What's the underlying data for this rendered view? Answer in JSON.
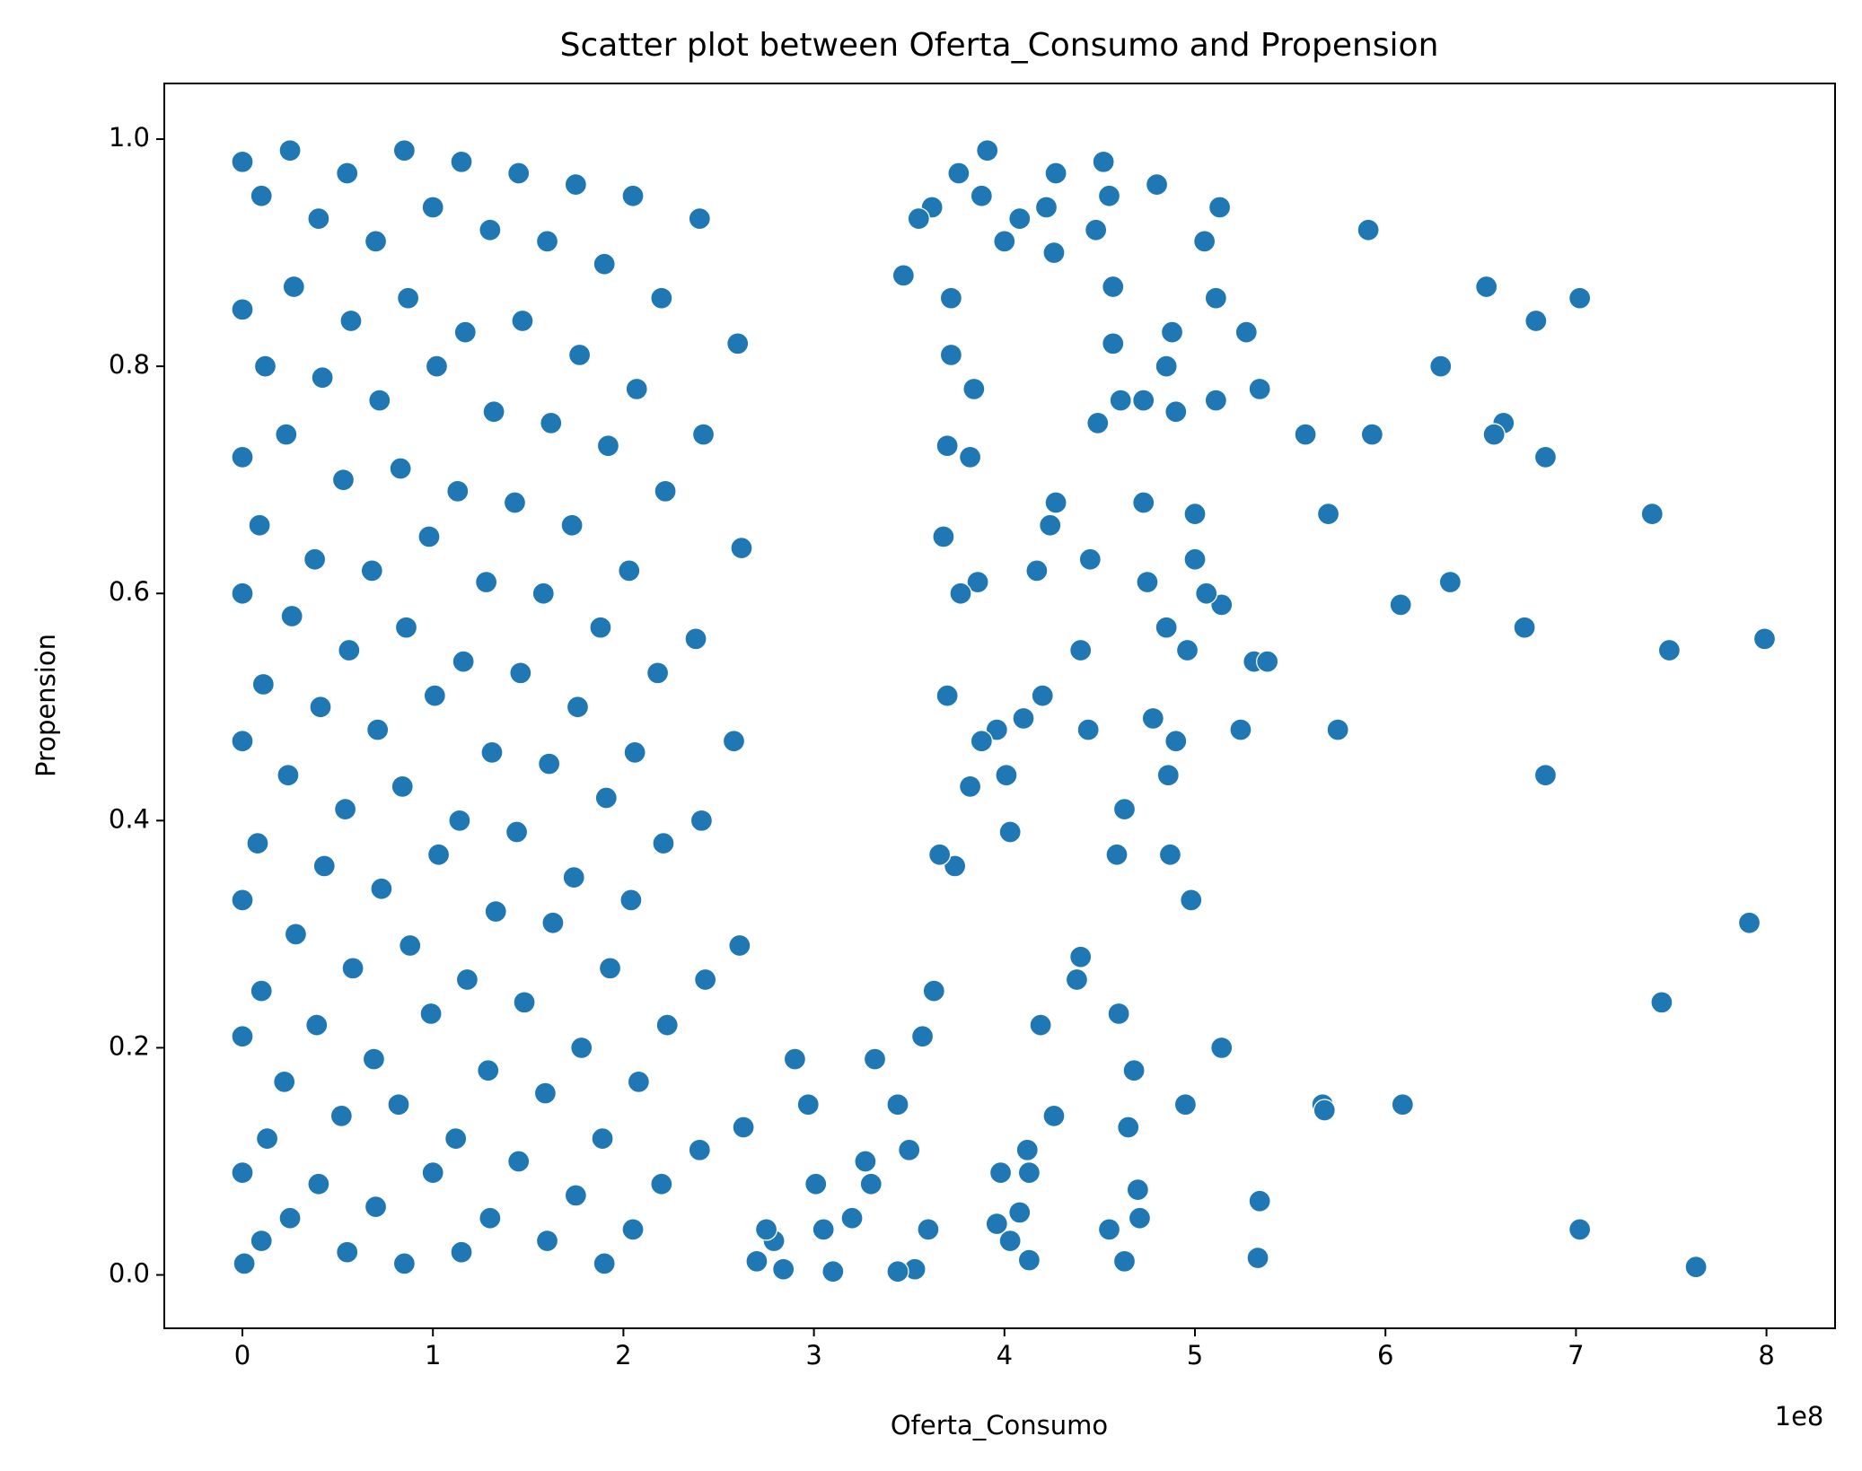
{
  "chart_data": {
    "type": "scatter",
    "title": "Scatter plot between Oferta_Consumo and Propension",
    "x_label": "Oferta_Consumo",
    "y_label": "Propension",
    "x_offset_label": "1e8",
    "color": "#1f77b4",
    "xlim": [
      -0.41,
      8.36
    ],
    "ylim": [
      -0.047,
      1.049
    ],
    "xticks": [
      0,
      1,
      2,
      3,
      4,
      5,
      6,
      7,
      8
    ],
    "yticks": [
      {
        "value": 0,
        "label": "0.0"
      },
      0.2,
      0.4,
      0.6,
      0.8,
      {
        "value": 1,
        "label": "1.0"
      }
    ],
    "x": [
      0,
      0,
      0,
      0,
      0,
      0,
      0,
      0,
      0.01,
      0.1,
      0.12,
      0.09,
      0.11,
      0.08,
      0.1,
      0.13,
      0.1,
      0.25,
      0.27,
      0.23,
      0.26,
      0.24,
      0.28,
      0.22,
      0.25,
      0.4,
      0.42,
      0.38,
      0.41,
      0.43,
      0.39,
      0.4,
      0.55,
      0.57,
      0.53,
      0.56,
      0.54,
      0.58,
      0.52,
      0.55,
      0.7,
      0.72,
      0.68,
      0.71,
      0.73,
      0.69,
      0.7,
      0.85,
      0.87,
      0.83,
      0.86,
      0.84,
      0.88,
      0.82,
      0.85,
      1.0,
      1.02,
      0.98,
      1.01,
      1.03,
      0.99,
      1.0,
      1.15,
      1.17,
      1.13,
      1.16,
      1.14,
      1.18,
      1.12,
      1.15,
      1.3,
      1.32,
      1.28,
      1.31,
      1.33,
      1.29,
      1.3,
      1.45,
      1.47,
      1.43,
      1.46,
      1.44,
      1.48,
      1.45,
      1.6,
      1.62,
      1.58,
      1.61,
      1.63,
      1.59,
      1.6,
      1.75,
      1.77,
      1.73,
      1.76,
      1.74,
      1.78,
      1.75,
      1.9,
      1.92,
      1.88,
      1.91,
      1.93,
      1.89,
      1.9,
      2.05,
      2.07,
      2.03,
      2.06,
      2.04,
      2.08,
      2.05,
      2.2,
      2.22,
      2.18,
      2.21,
      2.23,
      2.2,
      2.4,
      2.42,
      2.38,
      2.41,
      2.43,
      2.4,
      2.6,
      2.62,
      2.58,
      2.61,
      2.63,
      5.91,
      6.53,
      7.02,
      6.79,
      6.29,
      5.58,
      5.93,
      6.62,
      6.57,
      6.84,
      7.4,
      5.7,
      6.34,
      6.08,
      6.73,
      7.49,
      7.99,
      5.75,
      6.84,
      7.91,
      7.45,
      6.09,
      5.67,
      5.68,
      7.02,
      7.63,
      5.34,
      5.33,
      5.14,
      4.95,
      5.13,
      5.05,
      5.11,
      5.27,
      5.34,
      5.11,
      4.8,
      5.0,
      5.0,
      5.14,
      5.06,
      4.85,
      4.96,
      5.24,
      5.31,
      5.38,
      4.98,
      4.63,
      4.59,
      4.68,
      4.6,
      4.55,
      4.63,
      4.71,
      4.7,
      4.65,
      4.87,
      4.86,
      4.78,
      4.9,
      4.88,
      4.85,
      4.9,
      4.73,
      4.73,
      4.75,
      4.52,
      4.55,
      4.48,
      4.57,
      4.57,
      4.61,
      4.49,
      4.45,
      4.4,
      4.44,
      4.4,
      4.38,
      4.26,
      4.19,
      4.13,
      4.12,
      4.13,
      4.08,
      3.98,
      4.03,
      3.96,
      4.01,
      4.03,
      3.96,
      4.1,
      4.2,
      4.17,
      4.24,
      4.27,
      4.26,
      4.27,
      4.22,
      4.08,
      4.0,
      3.88,
      3.91,
      3.76,
      3.72,
      3.62,
      3.55,
      3.47,
      3.72,
      3.84,
      3.82,
      3.7,
      3.68,
      3.86,
      3.77,
      3.7,
      3.88,
      3.82,
      3.74,
      3.66,
      3.57,
      3.63,
      3.6,
      3.53,
      3.44,
      3.5,
      3.44,
      3.32,
      3.3,
      3.27,
      3.2,
      3.1,
      3.05,
      3.01,
      2.97,
      2.9,
      2.84,
      2.79,
      2.7,
      2.75
    ],
    "values": [
      0.98,
      0.85,
      0.72,
      0.6,
      0.47,
      0.33,
      0.21,
      0.09,
      0.01,
      0.95,
      0.8,
      0.66,
      0.52,
      0.38,
      0.25,
      0.12,
      0.03,
      0.99,
      0.87,
      0.74,
      0.58,
      0.44,
      0.3,
      0.17,
      0.05,
      0.93,
      0.79,
      0.63,
      0.5,
      0.36,
      0.22,
      0.08,
      0.97,
      0.84,
      0.7,
      0.55,
      0.41,
      0.27,
      0.14,
      0.02,
      0.91,
      0.77,
      0.62,
      0.48,
      0.34,
      0.19,
      0.06,
      0.99,
      0.86,
      0.71,
      0.57,
      0.43,
      0.29,
      0.15,
      0.01,
      0.94,
      0.8,
      0.65,
      0.51,
      0.37,
      0.23,
      0.09,
      0.98,
      0.83,
      0.69,
      0.54,
      0.4,
      0.26,
      0.12,
      0.02,
      0.92,
      0.76,
      0.61,
      0.46,
      0.32,
      0.18,
      0.05,
      0.97,
      0.84,
      0.68,
      0.53,
      0.39,
      0.24,
      0.1,
      0.91,
      0.75,
      0.6,
      0.45,
      0.31,
      0.16,
      0.03,
      0.96,
      0.81,
      0.66,
      0.5,
      0.35,
      0.2,
      0.07,
      0.89,
      0.73,
      0.57,
      0.42,
      0.27,
      0.12,
      0.01,
      0.95,
      0.78,
      0.62,
      0.46,
      0.33,
      0.17,
      0.04,
      0.86,
      0.69,
      0.53,
      0.38,
      0.22,
      0.08,
      0.93,
      0.74,
      0.56,
      0.4,
      0.26,
      0.11,
      0.82,
      0.64,
      0.47,
      0.29,
      0.13,
      0.92,
      0.87,
      0.86,
      0.84,
      0.8,
      0.74,
      0.74,
      0.75,
      0.74,
      0.72,
      0.67,
      0.67,
      0.61,
      0.59,
      0.57,
      0.55,
      0.56,
      0.48,
      0.44,
      0.31,
      0.24,
      0.15,
      0.15,
      0.145,
      0.04,
      0.007,
      0.065,
      0.015,
      0.2,
      0.15,
      0.94,
      0.91,
      0.86,
      0.83,
      0.78,
      0.77,
      0.96,
      0.67,
      0.63,
      0.59,
      0.6,
      0.57,
      0.55,
      0.48,
      0.54,
      0.54,
      0.33,
      0.41,
      0.37,
      0.18,
      0.23,
      0.04,
      0.012,
      0.05,
      0.075,
      0.13,
      0.37,
      0.44,
      0.49,
      0.47,
      0.83,
      0.8,
      0.76,
      0.77,
      0.68,
      0.61,
      0.98,
      0.95,
      0.92,
      0.87,
      0.82,
      0.77,
      0.75,
      0.63,
      0.55,
      0.48,
      0.28,
      0.26,
      0.14,
      0.22,
      0.09,
      0.11,
      0.013,
      0.055,
      0.09,
      0.03,
      0.045,
      0.44,
      0.39,
      0.48,
      0.49,
      0.51,
      0.62,
      0.66,
      0.68,
      0.9,
      0.97,
      0.94,
      0.93,
      0.91,
      0.95,
      0.99,
      0.97,
      0.86,
      0.94,
      0.93,
      0.88,
      0.81,
      0.78,
      0.72,
      0.73,
      0.65,
      0.61,
      0.6,
      0.51,
      0.47,
      0.43,
      0.36,
      0.37,
      0.21,
      0.25,
      0.04,
      0.005,
      0.003,
      0.11,
      0.15,
      0.19,
      0.08,
      0.1,
      0.05,
      0.003,
      0.04,
      0.08,
      0.15,
      0.19,
      0.005,
      0.03,
      0.012,
      0.04
    ]
  }
}
